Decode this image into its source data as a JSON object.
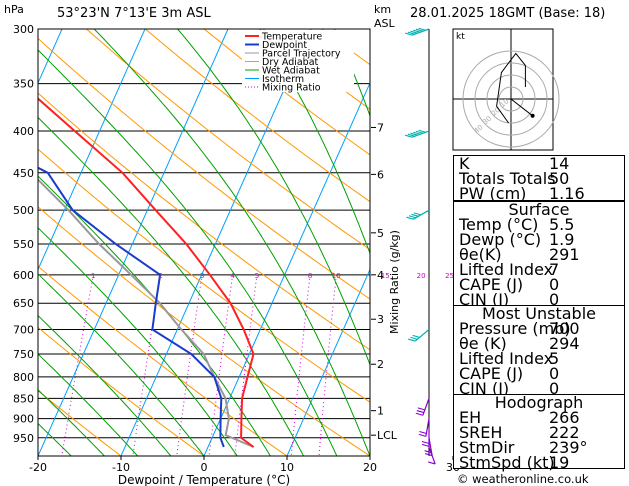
{
  "header": {
    "location": "53°23'N  7°13'E  3m  ASL",
    "datetime": "28.01.2025  18GMT  (Base: 18)"
  },
  "footer": {
    "credit": "© weatheronline.co.uk"
  },
  "chart_data": {
    "type": "skew-t log-p",
    "ylabel_left": "hPa",
    "ylabel_right_top": "km",
    "ylabel_right_top2": "ASL",
    "xlabel": "Dewpoint  /  Temperature  (°C)",
    "mixing_ratio_axis_label": "Mixing Ratio  (g/kg)",
    "pressure_ticks": [
      300,
      350,
      400,
      450,
      500,
      550,
      600,
      650,
      700,
      750,
      800,
      850,
      900,
      950
    ],
    "x_ticks": [
      -40,
      -30,
      -20,
      -10,
      0,
      10,
      20,
      30
    ],
    "km_ticks": [
      {
        "label": "7",
        "p": 396
      },
      {
        "label": "6",
        "p": 452
      },
      {
        "label": "5",
        "p": 533
      },
      {
        "label": "4",
        "p": 600
      },
      {
        "label": "3",
        "p": 680
      },
      {
        "label": "2",
        "p": 772
      },
      {
        "label": "1",
        "p": 880
      },
      {
        "label": "LCL",
        "p": 943
      }
    ],
    "mixing_ratio_labels": [
      "1",
      "2",
      "3",
      "4",
      "5",
      "8",
      "10",
      "15",
      "20",
      "25"
    ],
    "mixing_ratio_values": [
      1,
      2,
      3,
      4,
      5,
      8,
      10,
      15,
      20,
      25
    ],
    "legend": [
      "Temperature",
      "Dewpoint",
      "Parcel Trajectory",
      "Dry Adiabat",
      "Wet Adiabat",
      "Isotherm",
      "Mixing Ratio"
    ],
    "colors": {
      "temperature": "#ff2020",
      "dewpoint": "#1a3ccc",
      "parcel": "#999999",
      "dry_adiabat": "#ff9900",
      "wet_adiabat": "#00a000",
      "isotherm": "#00a0ff",
      "mixing_ratio": "#cc00cc"
    },
    "temperature": [
      {
        "p": 300,
        "t": -48
      },
      {
        "p": 350,
        "t": -42
      },
      {
        "p": 400,
        "t": -33
      },
      {
        "p": 450,
        "t": -25
      },
      {
        "p": 500,
        "t": -19
      },
      {
        "p": 550,
        "t": -13.5
      },
      {
        "p": 600,
        "t": -9
      },
      {
        "p": 650,
        "t": -5
      },
      {
        "p": 700,
        "t": -2
      },
      {
        "p": 750,
        "t": 0.5
      },
      {
        "p": 800,
        "t": 1
      },
      {
        "p": 850,
        "t": 1.5
      },
      {
        "p": 900,
        "t": 2.5
      },
      {
        "p": 950,
        "t": 3.5
      },
      {
        "p": 975,
        "t": 5.5
      }
    ],
    "dewpoint": [
      {
        "p": 300,
        "t": -60
      },
      {
        "p": 350,
        "t": -55
      },
      {
        "p": 400,
        "t": -46
      },
      {
        "p": 450,
        "t": -34
      },
      {
        "p": 500,
        "t": -29
      },
      {
        "p": 550,
        "t": -22
      },
      {
        "p": 600,
        "t": -15
      },
      {
        "p": 650,
        "t": -14
      },
      {
        "p": 700,
        "t": -13
      },
      {
        "p": 750,
        "t": -7
      },
      {
        "p": 800,
        "t": -3
      },
      {
        "p": 850,
        "t": -1
      },
      {
        "p": 900,
        "t": 0
      },
      {
        "p": 950,
        "t": 1
      },
      {
        "p": 975,
        "t": 1.9
      }
    ],
    "parcel": [
      {
        "p": 300,
        "t": -62
      },
      {
        "p": 350,
        "t": -53
      },
      {
        "p": 400,
        "t": -44
      },
      {
        "p": 450,
        "t": -36
      },
      {
        "p": 500,
        "t": -29.5
      },
      {
        "p": 550,
        "t": -24
      },
      {
        "p": 600,
        "t": -18.5
      },
      {
        "p": 650,
        "t": -13.5
      },
      {
        "p": 700,
        "t": -9.5
      },
      {
        "p": 750,
        "t": -5.5
      },
      {
        "p": 800,
        "t": -3
      },
      {
        "p": 850,
        "t": -0.5
      },
      {
        "p": 900,
        "t": 1
      },
      {
        "p": 943,
        "t": 1.5
      },
      {
        "p": 975,
        "t": 5.5
      }
    ],
    "hodograph": {
      "label": "kt",
      "ring_labels": [
        "10",
        "20",
        "30",
        "40"
      ],
      "trace": [
        [
          12,
          10
        ],
        [
          12,
          28
        ],
        [
          4,
          38
        ],
        [
          -8,
          22
        ],
        [
          -12,
          -6
        ],
        [
          -2,
          -20
        ]
      ],
      "storm": [
        18,
        -14
      ]
    },
    "wind_barbs": [
      {
        "p": 300,
        "dir": 250,
        "spd": 70
      },
      {
        "p": 400,
        "dir": 250,
        "spd": 55
      },
      {
        "p": 500,
        "dir": 240,
        "spd": 40
      },
      {
        "p": 700,
        "dir": 230,
        "spd": 25
      },
      {
        "p": 850,
        "dir": 200,
        "spd": 25
      },
      {
        "p": 900,
        "dir": 190,
        "spd": 20
      },
      {
        "p": 925,
        "dir": 180,
        "spd": 20
      },
      {
        "p": 950,
        "dir": 170,
        "spd": 15
      },
      {
        "p": 975,
        "dir": 160,
        "spd": 10
      }
    ]
  },
  "indices": {
    "top": [
      {
        "k": "K",
        "v": "14"
      },
      {
        "k": "Totals Totals",
        "v": "50"
      },
      {
        "k": "PW (cm)",
        "v": "1.16"
      }
    ],
    "surface_title": "Surface",
    "surface": [
      {
        "k": "Temp (°C)",
        "v": "5.5"
      },
      {
        "k": "Dewp (°C)",
        "v": "1.9"
      },
      {
        "k": "θe(K)",
        "v": "291"
      },
      {
        "k": "Lifted Index",
        "v": "7"
      },
      {
        "k": "CAPE (J)",
        "v": "0"
      },
      {
        "k": "CIN (J)",
        "v": "0"
      }
    ],
    "mu_title": "Most Unstable",
    "mu": [
      {
        "k": "Pressure (mb)",
        "v": "700"
      },
      {
        "k": "θe (K)",
        "v": "294"
      },
      {
        "k": "Lifted Index",
        "v": "5"
      },
      {
        "k": "CAPE (J)",
        "v": "0"
      },
      {
        "k": "CIN (J)",
        "v": "0"
      }
    ],
    "hodo_title": "Hodograph",
    "hodo": [
      {
        "k": "EH",
        "v": "266"
      },
      {
        "k": "SREH",
        "v": "222"
      },
      {
        "k": "StmDir",
        "v": "239°"
      },
      {
        "k": "StmSpd (kt)",
        "v": "19"
      }
    ]
  }
}
